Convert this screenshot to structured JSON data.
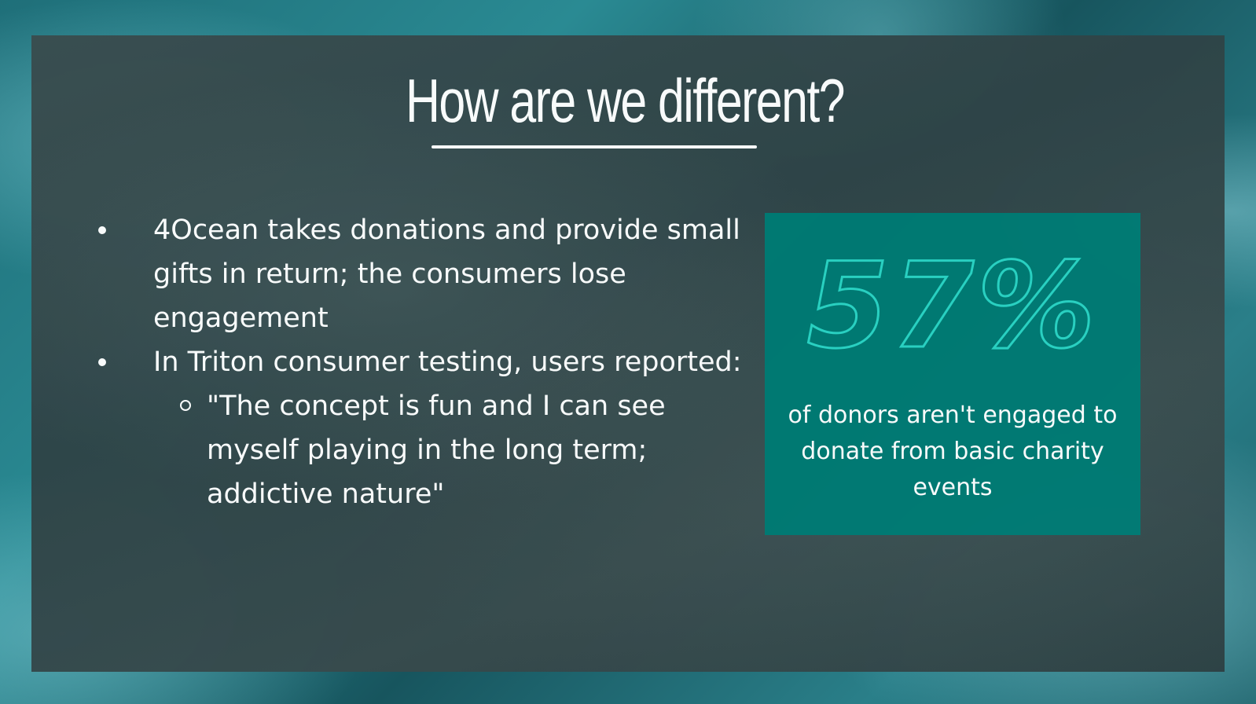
{
  "slide": {
    "title": "How are we different?",
    "bullets": [
      {
        "text": " 4Ocean takes donations and provide small gifts in return; the consumers lose engagement"
      },
      {
        "text": "In Triton consumer testing, users reported:",
        "sub_bullets": [
          "\"The concept is fun and I can see myself playing in the long term; addictive nature\""
        ]
      }
    ],
    "stat": {
      "value": "57%",
      "caption": "of donors aren't engaged to donate from basic charity events",
      "accent_color": "#2ad4c4",
      "box_color": "#007a73"
    }
  }
}
